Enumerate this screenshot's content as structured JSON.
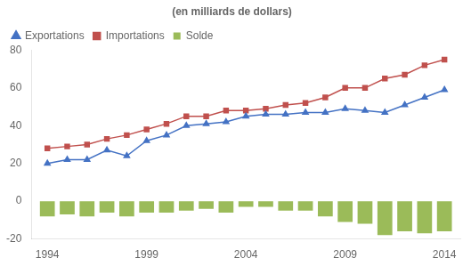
{
  "chart_data": {
    "type": "bar",
    "title": "(en milliards de dollars)",
    "x": [
      1994,
      1995,
      1996,
      1997,
      1998,
      1999,
      2000,
      2001,
      2002,
      2003,
      2004,
      2005,
      2006,
      2007,
      2008,
      2009,
      2010,
      2011,
      2012,
      2013,
      2014
    ],
    "series": [
      {
        "name": "Solde",
        "type": "bar",
        "color": "#9BBB59",
        "values": [
          -8,
          -7,
          -8,
          -6,
          -8,
          -6,
          -6,
          -5,
          -4,
          -6,
          -3,
          -3,
          -5,
          -5,
          -8,
          -11,
          -12,
          -18,
          -16,
          -17,
          -16
        ]
      },
      {
        "name": "Exportations",
        "type": "line",
        "color": "#4472C4",
        "marker": "triangle",
        "line_style": "solid",
        "values": [
          20,
          22,
          22,
          27,
          24,
          32,
          35,
          40,
          41,
          42,
          45,
          46,
          46,
          47,
          47,
          49,
          48,
          47,
          51,
          55,
          59
        ]
      },
      {
        "name": "Importations",
        "type": "line",
        "color": "#C0504D",
        "marker": "square",
        "line_style": "solid",
        "values": [
          28,
          29,
          30,
          33,
          35,
          38,
          41,
          45,
          45,
          48,
          48,
          49,
          51,
          52,
          55,
          60,
          60,
          65,
          67,
          72,
          75
        ]
      }
    ],
    "xlim": [
      1993.2,
      2014.8
    ],
    "xticks": [
      1994,
      1999,
      2004,
      2009,
      2014
    ],
    "ylim": [
      -20,
      80
    ],
    "yticks": [
      -20,
      0,
      20,
      40,
      60,
      80
    ],
    "grid": false,
    "legend": "upper left"
  }
}
